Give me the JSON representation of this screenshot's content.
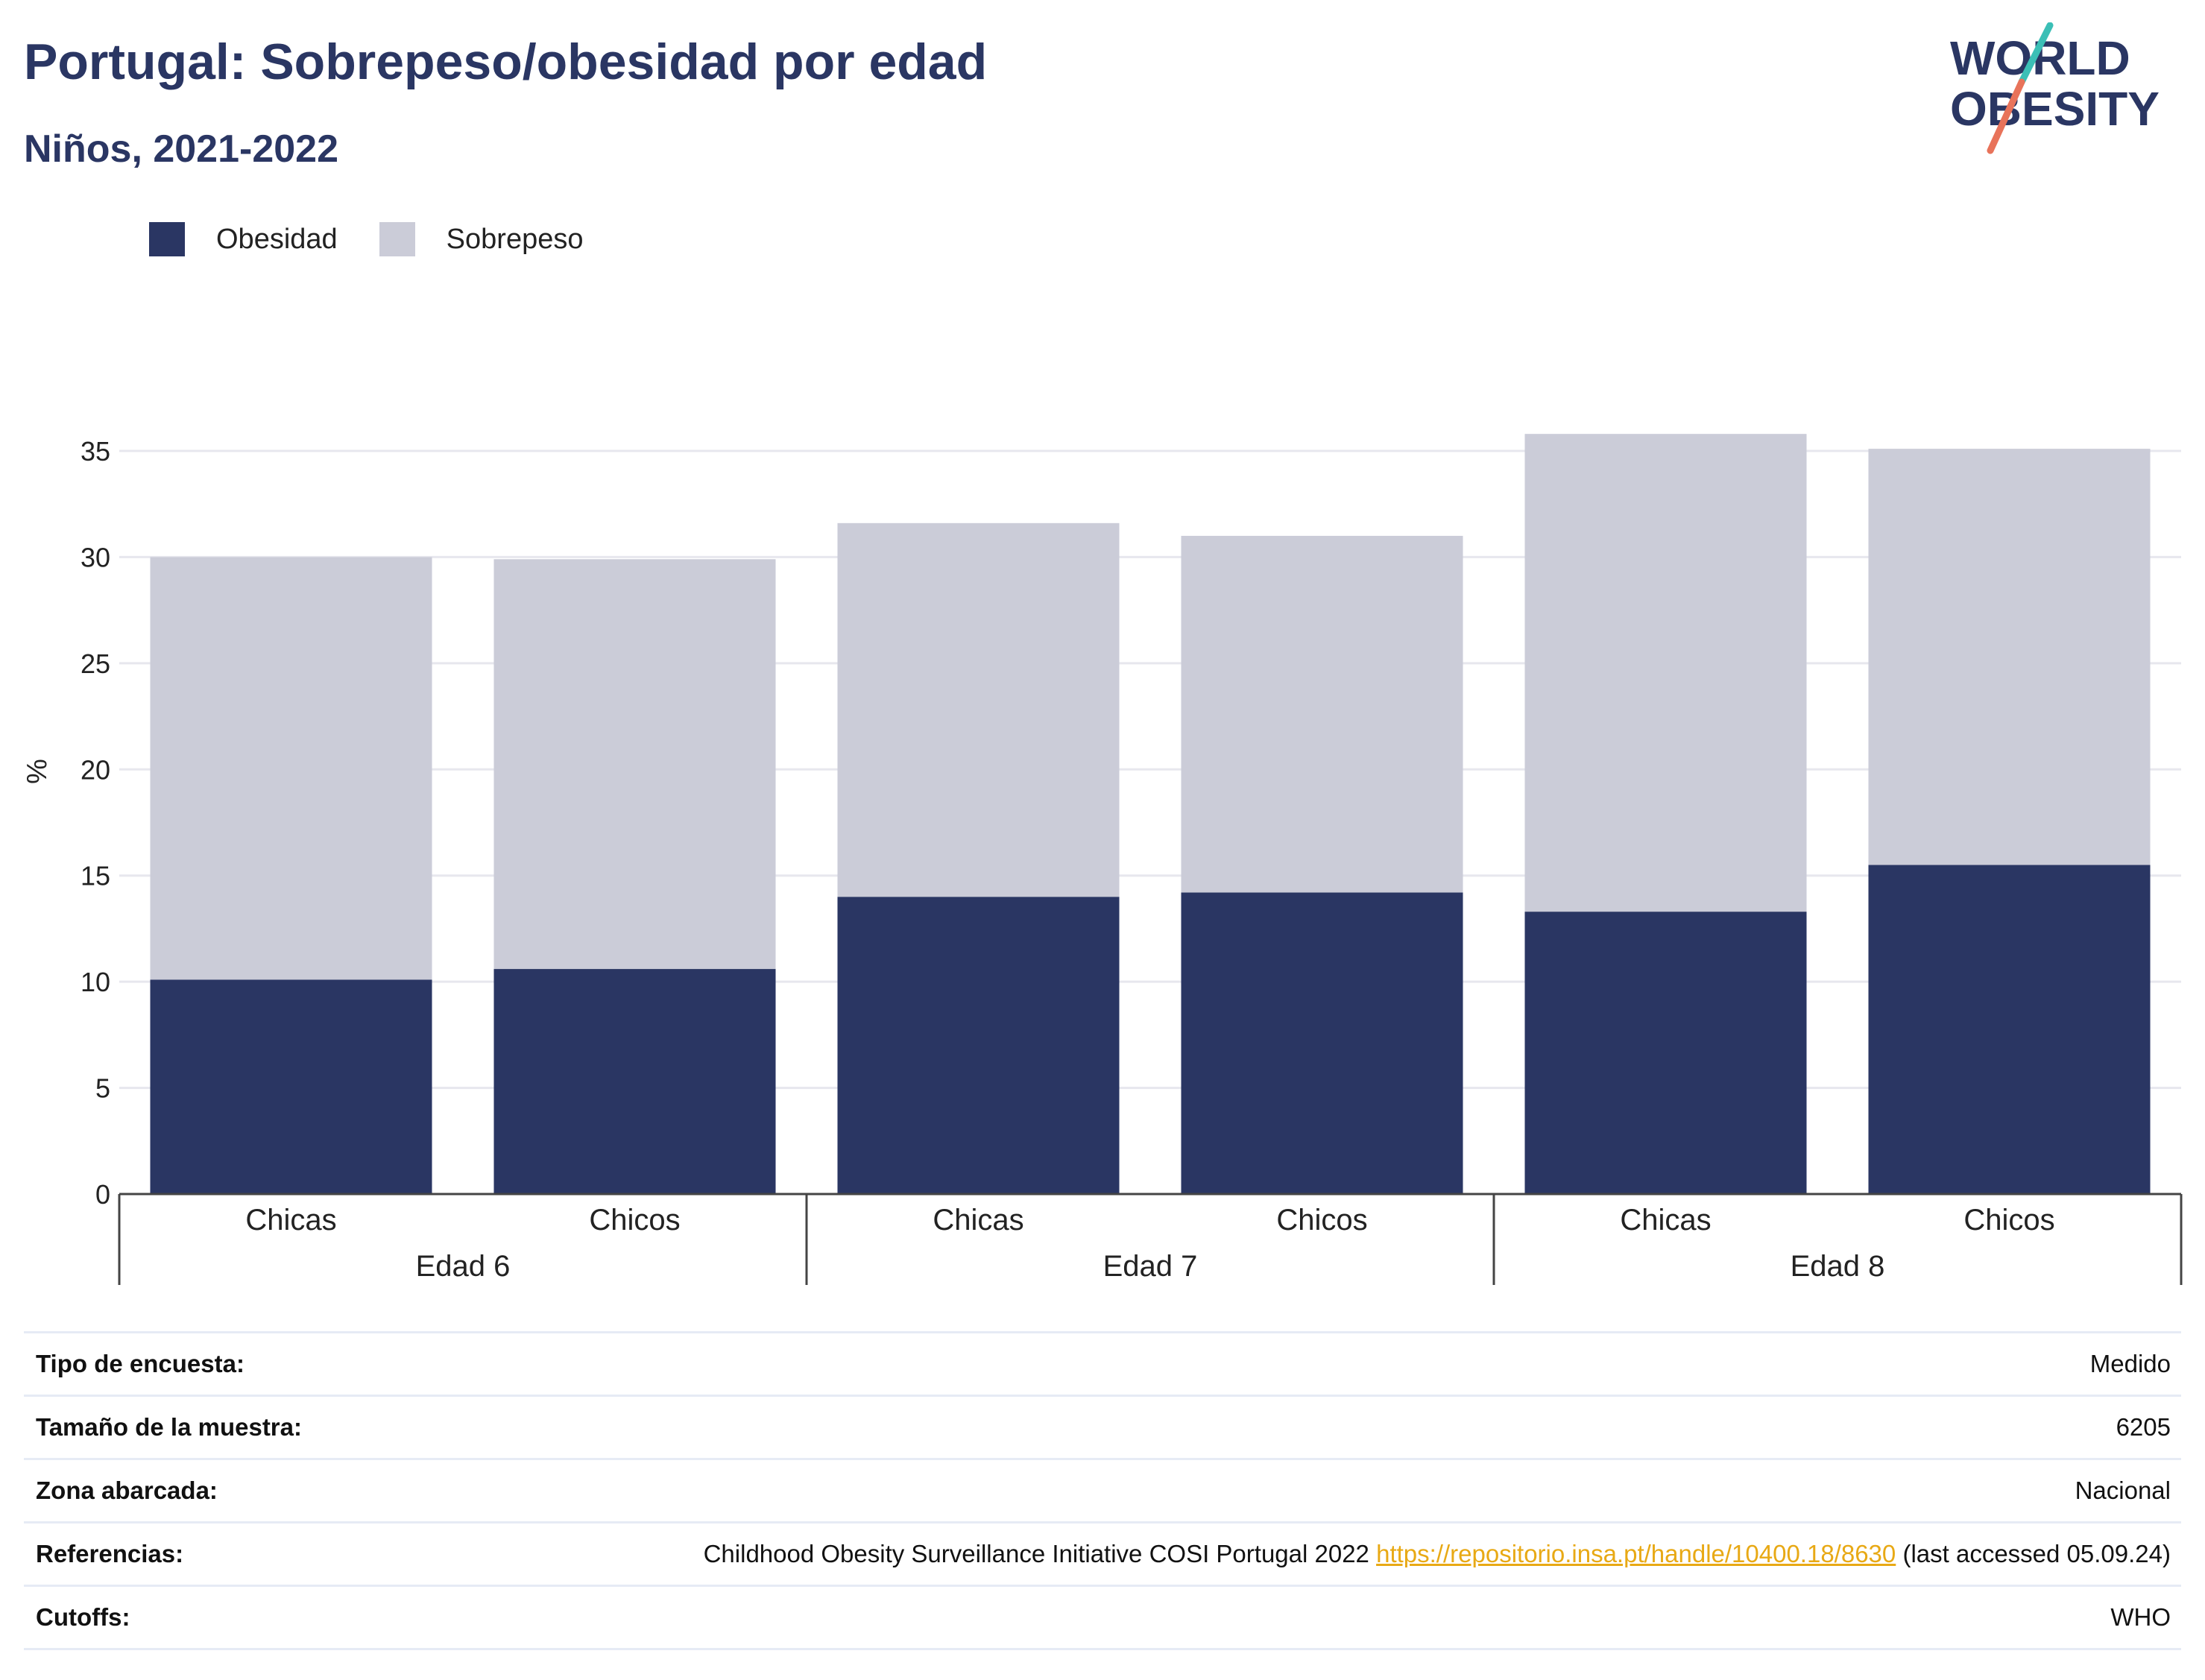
{
  "header": {
    "title": "Portugal: Sobrepeso/obesidad por edad",
    "subtitle": "Niños, 2021-2022"
  },
  "logo": {
    "line1": "WORLD",
    "line2": "OBESITY",
    "colors": {
      "text": "#2a3663",
      "slash_top": "#3bbfb6",
      "slash_bottom": "#e8735a"
    }
  },
  "legend": [
    {
      "label": "Obesidad",
      "color": "#2a3663"
    },
    {
      "label": "Sobrepeso",
      "color": "#cbccd8"
    }
  ],
  "chart_data": {
    "type": "bar",
    "stacked": true,
    "ylabel": "%",
    "ylim": [
      0,
      37
    ],
    "yticks": [
      0,
      5,
      10,
      15,
      20,
      25,
      30,
      35
    ],
    "grid": true,
    "legend_position": "top-left",
    "groups": [
      {
        "label": "Edad 6",
        "categories": [
          "Chicas",
          "Chicos"
        ]
      },
      {
        "label": "Edad 7",
        "categories": [
          "Chicas",
          "Chicos"
        ]
      },
      {
        "label": "Edad 8",
        "categories": [
          "Chicas",
          "Chicos"
        ]
      }
    ],
    "categories": [
      "Chicas",
      "Chicos",
      "Chicas",
      "Chicos",
      "Chicas",
      "Chicos"
    ],
    "series": [
      {
        "name": "Obesidad",
        "color": "#2a3663",
        "values": [
          10.1,
          10.6,
          14.0,
          14.2,
          13.3,
          15.5
        ]
      },
      {
        "name": "Sobrepeso",
        "color": "#cbccd8",
        "values": [
          19.9,
          19.3,
          17.6,
          16.8,
          22.5,
          19.6
        ]
      }
    ]
  },
  "info": {
    "rows": [
      {
        "key": "Tipo de encuesta:",
        "value": "Medido"
      },
      {
        "key": "Tamaño de la muestra:",
        "value": "6205"
      },
      {
        "key": "Zona abarcada:",
        "value": "Nacional"
      },
      {
        "key": "Referencias:",
        "value_prefix": "Childhood Obesity Surveillance Initiative COSI Portugal 2022 ",
        "link": "https://repositorio.insa.pt/handle/10400.18/8630",
        "value_suffix": " (last accessed 05.09.24)"
      },
      {
        "key": "Cutoffs:",
        "value": "WHO"
      }
    ]
  }
}
